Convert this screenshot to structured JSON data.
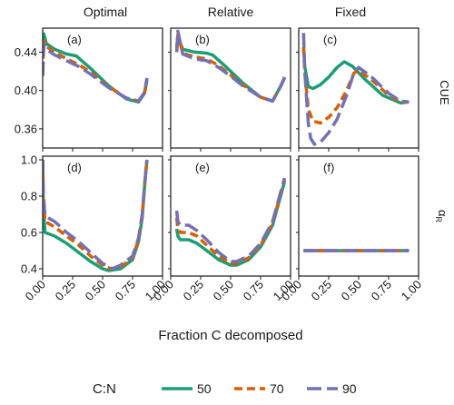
{
  "figure": {
    "xlabel": "Fraction C decomposed",
    "columns": [
      "Optimal",
      "Relative",
      "Fixed"
    ],
    "row_labels": [
      "CUE",
      "α",
      "R"
    ],
    "legend": {
      "title": "C:N",
      "entries": [
        {
          "label": "50",
          "color": "#1b9e77",
          "dash": "solid"
        },
        {
          "label": "70",
          "color": "#d95f02",
          "dash": "dashed"
        },
        {
          "label": "90",
          "color": "#7570b3",
          "dash": "longdash"
        }
      ]
    }
  },
  "chart_data": [
    {
      "type": "line",
      "panel": "(a)",
      "column": "Optimal",
      "row": "CUE",
      "xlim": [
        0,
        1
      ],
      "ylim": [
        0.34,
        0.465
      ],
      "x_ticks": [
        "0.00",
        "0.25",
        "0.50",
        "0.75",
        "1.00"
      ],
      "y_ticks": [
        "0.36",
        "0.40",
        "0.44"
      ],
      "series": [
        {
          "name": "50",
          "x": [
            0.0,
            0.01,
            0.03,
            0.1,
            0.2,
            0.28,
            0.4,
            0.55,
            0.7,
            0.8,
            0.85,
            0.87
          ],
          "y": [
            0.443,
            0.459,
            0.449,
            0.443,
            0.438,
            0.436,
            0.423,
            0.405,
            0.391,
            0.388,
            0.397,
            0.41
          ]
        },
        {
          "name": "70",
          "x": [
            0.0,
            0.01,
            0.03,
            0.1,
            0.2,
            0.3,
            0.4,
            0.55,
            0.7,
            0.8,
            0.85,
            0.87
          ],
          "y": [
            0.42,
            0.452,
            0.446,
            0.44,
            0.433,
            0.427,
            0.419,
            0.404,
            0.392,
            0.389,
            0.398,
            0.412
          ]
        },
        {
          "name": "90",
          "x": [
            0.0,
            0.01,
            0.03,
            0.1,
            0.2,
            0.3,
            0.4,
            0.55,
            0.7,
            0.8,
            0.85,
            0.87
          ],
          "y": [
            0.415,
            0.448,
            0.443,
            0.437,
            0.431,
            0.425,
            0.417,
            0.403,
            0.392,
            0.389,
            0.398,
            0.413
          ]
        }
      ]
    },
    {
      "type": "line",
      "panel": "(b)",
      "column": "Relative",
      "row": "CUE",
      "xlim": [
        0,
        1
      ],
      "ylim": [
        0.34,
        0.465
      ],
      "x_ticks": [
        "0.00",
        "0.25",
        "0.50",
        "0.75",
        "1.00"
      ],
      "y_ticks": [
        "0.36",
        "0.40",
        "0.44"
      ],
      "series": [
        {
          "name": "50",
          "x": [
            0.05,
            0.06,
            0.1,
            0.2,
            0.3,
            0.35,
            0.45,
            0.6,
            0.75,
            0.85,
            0.92,
            0.95
          ],
          "y": [
            0.445,
            0.456,
            0.443,
            0.44,
            0.439,
            0.437,
            0.426,
            0.408,
            0.393,
            0.389,
            0.405,
            0.413
          ]
        },
        {
          "name": "70",
          "x": [
            0.05,
            0.06,
            0.1,
            0.2,
            0.3,
            0.4,
            0.5,
            0.6,
            0.75,
            0.85,
            0.92,
            0.95
          ],
          "y": [
            0.44,
            0.458,
            0.439,
            0.435,
            0.433,
            0.426,
            0.416,
            0.406,
            0.393,
            0.389,
            0.405,
            0.414
          ]
        },
        {
          "name": "90",
          "x": [
            0.05,
            0.06,
            0.1,
            0.2,
            0.3,
            0.4,
            0.5,
            0.6,
            0.75,
            0.85,
            0.92,
            0.95
          ],
          "y": [
            0.44,
            0.462,
            0.438,
            0.433,
            0.431,
            0.424,
            0.415,
            0.405,
            0.393,
            0.389,
            0.405,
            0.414
          ]
        }
      ]
    },
    {
      "type": "line",
      "panel": "(c)",
      "column": "Fixed",
      "row": "CUE",
      "xlim": [
        0,
        1
      ],
      "ylim": [
        0.34,
        0.465
      ],
      "x_ticks": [
        "0.00",
        "0.25",
        "0.50",
        "0.75",
        "1.00"
      ],
      "y_ticks": [
        "0.36",
        "0.40",
        "0.44"
      ],
      "series": [
        {
          "name": "50",
          "x": [
            0.04,
            0.05,
            0.08,
            0.12,
            0.18,
            0.25,
            0.32,
            0.38,
            0.45,
            0.55,
            0.7,
            0.85,
            0.92
          ],
          "y": [
            0.445,
            0.425,
            0.404,
            0.402,
            0.406,
            0.414,
            0.424,
            0.43,
            0.425,
            0.412,
            0.395,
            0.387,
            0.388
          ]
        },
        {
          "name": "70",
          "x": [
            0.04,
            0.05,
            0.08,
            0.12,
            0.18,
            0.25,
            0.32,
            0.4,
            0.46,
            0.5,
            0.6,
            0.75,
            0.85,
            0.92
          ],
          "y": [
            0.445,
            0.42,
            0.38,
            0.368,
            0.366,
            0.372,
            0.382,
            0.4,
            0.418,
            0.421,
            0.412,
            0.395,
            0.388,
            0.388
          ]
        },
        {
          "name": "90",
          "x": [
            0.04,
            0.05,
            0.08,
            0.1,
            0.13,
            0.18,
            0.25,
            0.32,
            0.4,
            0.46,
            0.5,
            0.6,
            0.75,
            0.85,
            0.92
          ],
          "y": [
            0.46,
            0.42,
            0.365,
            0.35,
            0.344,
            0.346,
            0.356,
            0.37,
            0.395,
            0.418,
            0.424,
            0.415,
            0.397,
            0.389,
            0.388
          ]
        }
      ]
    },
    {
      "type": "line",
      "panel": "(d)",
      "column": "Optimal",
      "row": "αR",
      "xlim": [
        0,
        1
      ],
      "ylim": [
        0.36,
        1.02
      ],
      "x_ticks": [
        "0.00",
        "0.25",
        "0.50",
        "0.75",
        "1.00"
      ],
      "y_ticks": [
        "0.4",
        "0.6",
        "0.8",
        "1.0"
      ],
      "series": [
        {
          "name": "50",
          "x": [
            0.0,
            0.005,
            0.02,
            0.1,
            0.2,
            0.3,
            0.4,
            0.5,
            0.55,
            0.65,
            0.75,
            0.8,
            0.83,
            0.85,
            0.87
          ],
          "y": [
            1.0,
            0.75,
            0.6,
            0.58,
            0.54,
            0.49,
            0.44,
            0.4,
            0.39,
            0.4,
            0.45,
            0.55,
            0.68,
            0.85,
            1.0
          ]
        },
        {
          "name": "70",
          "x": [
            0.0,
            0.005,
            0.02,
            0.1,
            0.2,
            0.3,
            0.4,
            0.5,
            0.57,
            0.65,
            0.75,
            0.8,
            0.83,
            0.85,
            0.87
          ],
          "y": [
            1.0,
            0.8,
            0.66,
            0.63,
            0.58,
            0.53,
            0.47,
            0.42,
            0.4,
            0.41,
            0.46,
            0.56,
            0.69,
            0.86,
            1.0
          ]
        },
        {
          "name": "90",
          "x": [
            0.0,
            0.005,
            0.02,
            0.1,
            0.2,
            0.3,
            0.4,
            0.5,
            0.58,
            0.65,
            0.75,
            0.8,
            0.83,
            0.85,
            0.87
          ],
          "y": [
            1.0,
            0.82,
            0.69,
            0.66,
            0.6,
            0.55,
            0.49,
            0.43,
            0.4,
            0.42,
            0.47,
            0.57,
            0.7,
            0.86,
            1.0
          ]
        }
      ]
    },
    {
      "type": "line",
      "panel": "(e)",
      "column": "Relative",
      "row": "αR",
      "xlim": [
        0,
        1
      ],
      "ylim": [
        0.36,
        1.02
      ],
      "x_ticks": [
        "0.00",
        "0.25",
        "0.50",
        "0.75",
        "1.00"
      ],
      "y_ticks": [
        "0.4",
        "0.6",
        "0.8",
        "1.0"
      ],
      "series": [
        {
          "name": "50",
          "x": [
            0.05,
            0.06,
            0.08,
            0.15,
            0.22,
            0.3,
            0.4,
            0.5,
            0.55,
            0.65,
            0.75,
            0.85,
            0.95
          ],
          "y": [
            0.62,
            0.58,
            0.56,
            0.56,
            0.54,
            0.5,
            0.45,
            0.42,
            0.42,
            0.45,
            0.52,
            0.64,
            0.88
          ]
        },
        {
          "name": "70",
          "x": [
            0.05,
            0.06,
            0.08,
            0.15,
            0.22,
            0.3,
            0.4,
            0.5,
            0.55,
            0.65,
            0.75,
            0.85,
            0.95
          ],
          "y": [
            0.68,
            0.62,
            0.6,
            0.6,
            0.58,
            0.53,
            0.47,
            0.43,
            0.43,
            0.46,
            0.53,
            0.65,
            0.89
          ]
        },
        {
          "name": "90",
          "x": [
            0.05,
            0.06,
            0.08,
            0.15,
            0.22,
            0.3,
            0.4,
            0.5,
            0.55,
            0.65,
            0.75,
            0.85,
            0.95
          ],
          "y": [
            0.72,
            0.66,
            0.64,
            0.64,
            0.61,
            0.56,
            0.49,
            0.44,
            0.44,
            0.47,
            0.54,
            0.66,
            0.9
          ]
        }
      ]
    },
    {
      "type": "line",
      "panel": "(f)",
      "column": "Fixed",
      "row": "αR",
      "xlim": [
        0,
        1
      ],
      "ylim": [
        0.36,
        1.02
      ],
      "x_ticks": [
        "0.00",
        "0.25",
        "0.50",
        "0.75",
        "1.00"
      ],
      "y_ticks": [
        "0.4",
        "0.6",
        "0.8",
        "1.0"
      ],
      "series": [
        {
          "name": "50",
          "x": [
            0.04,
            0.92
          ],
          "y": [
            0.5,
            0.5
          ]
        },
        {
          "name": "70",
          "x": [
            0.04,
            0.92
          ],
          "y": [
            0.5,
            0.5
          ]
        },
        {
          "name": "90",
          "x": [
            0.04,
            0.92
          ],
          "y": [
            0.5,
            0.5
          ]
        }
      ]
    }
  ]
}
